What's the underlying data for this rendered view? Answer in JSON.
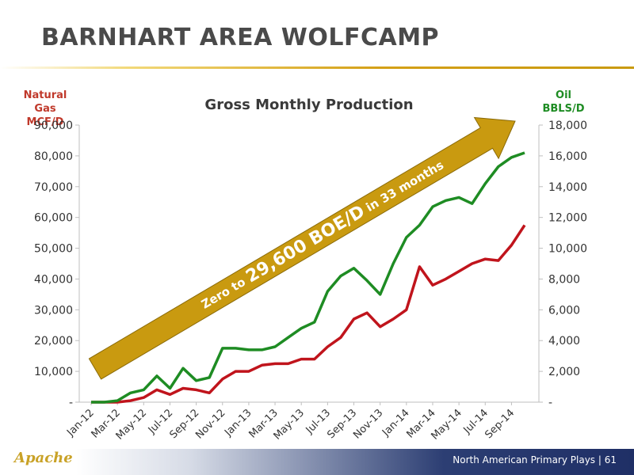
{
  "slide": {
    "title": "BARNHART AREA WOLFCAMP",
    "footer_text": "North American Primary Plays | 61",
    "logo_text": "Apache"
  },
  "chart_data": {
    "type": "line",
    "title": "Gross Monthly Production",
    "left_axis": {
      "label_line1": "Natural Gas",
      "label_line2": "MCF/D",
      "min": 0,
      "max": 90000,
      "step": 10000,
      "tick_labels": [
        "-",
        "10,000",
        "20,000",
        "30,000",
        "40,000",
        "50,000",
        "60,000",
        "70,000",
        "80,000",
        "90,000"
      ]
    },
    "right_axis": {
      "label_line1": "Oil",
      "label_line2": "BBLS/D",
      "min": 0,
      "max": 18000,
      "step": 2000,
      "tick_labels": [
        "-",
        "2,000",
        "4,000",
        "6,000",
        "8,000",
        "10,000",
        "12,000",
        "14,000",
        "16,000",
        "18,000"
      ]
    },
    "x": [
      "Jan-12",
      "Feb-12",
      "Mar-12",
      "Apr-12",
      "May-12",
      "Jun-12",
      "Jul-12",
      "Aug-12",
      "Sep-12",
      "Oct-12",
      "Nov-12",
      "Dec-12",
      "Jan-13",
      "Feb-13",
      "Mar-13",
      "Apr-13",
      "May-13",
      "Jun-13",
      "Jul-13",
      "Aug-13",
      "Sep-13",
      "Oct-13",
      "Nov-13",
      "Dec-13",
      "Jan-14",
      "Feb-14",
      "Mar-14",
      "Apr-14",
      "May-14",
      "Jun-14",
      "Jul-14",
      "Aug-14",
      "Sep-14",
      "Oct-14"
    ],
    "x_tick_labels": [
      "Jan-12",
      "Mar-12",
      "May-12",
      "Jul-12",
      "Sep-12",
      "Nov-12",
      "Jan-13",
      "Mar-13",
      "May-13",
      "Jul-13",
      "Sep-13",
      "Nov-13",
      "Jan-14",
      "Mar-14",
      "May-14",
      "Jul-14",
      "Sep-14"
    ],
    "series": [
      {
        "axis": "left",
        "color": "#c0141c",
        "values": [
          0,
          0,
          0,
          500,
          1500,
          4000,
          2500,
          4500,
          4000,
          3000,
          7500,
          10000,
          10000,
          12000,
          12500,
          12500,
          14000,
          14000,
          18000,
          21000,
          27000,
          29000,
          24500,
          27000,
          30000,
          44000,
          38000,
          40000,
          42500,
          45000,
          46500,
          46000,
          51000,
          57500
        ]
      },
      {
        "axis": "right",
        "color": "#1e8c23",
        "values": [
          0,
          0,
          100,
          600,
          800,
          1700,
          900,
          2200,
          1400,
          1600,
          3500,
          3500,
          3400,
          3400,
          3600,
          4200,
          4800,
          5200,
          7200,
          8200,
          8700,
          7900,
          7000,
          9000,
          10700,
          11500,
          12700,
          13100,
          13300,
          12900,
          14200,
          15300,
          15900,
          16200
        ]
      }
    ],
    "annotation": {
      "part1": "Zero to ",
      "part2": "29,600 BOE/D",
      "part3": " in 33 months"
    },
    "colors": {
      "arrow_fill": "#c99a10",
      "arrow_stroke": "#8a6a08",
      "gas": "#c0141c",
      "oil": "#1e8c23"
    }
  }
}
